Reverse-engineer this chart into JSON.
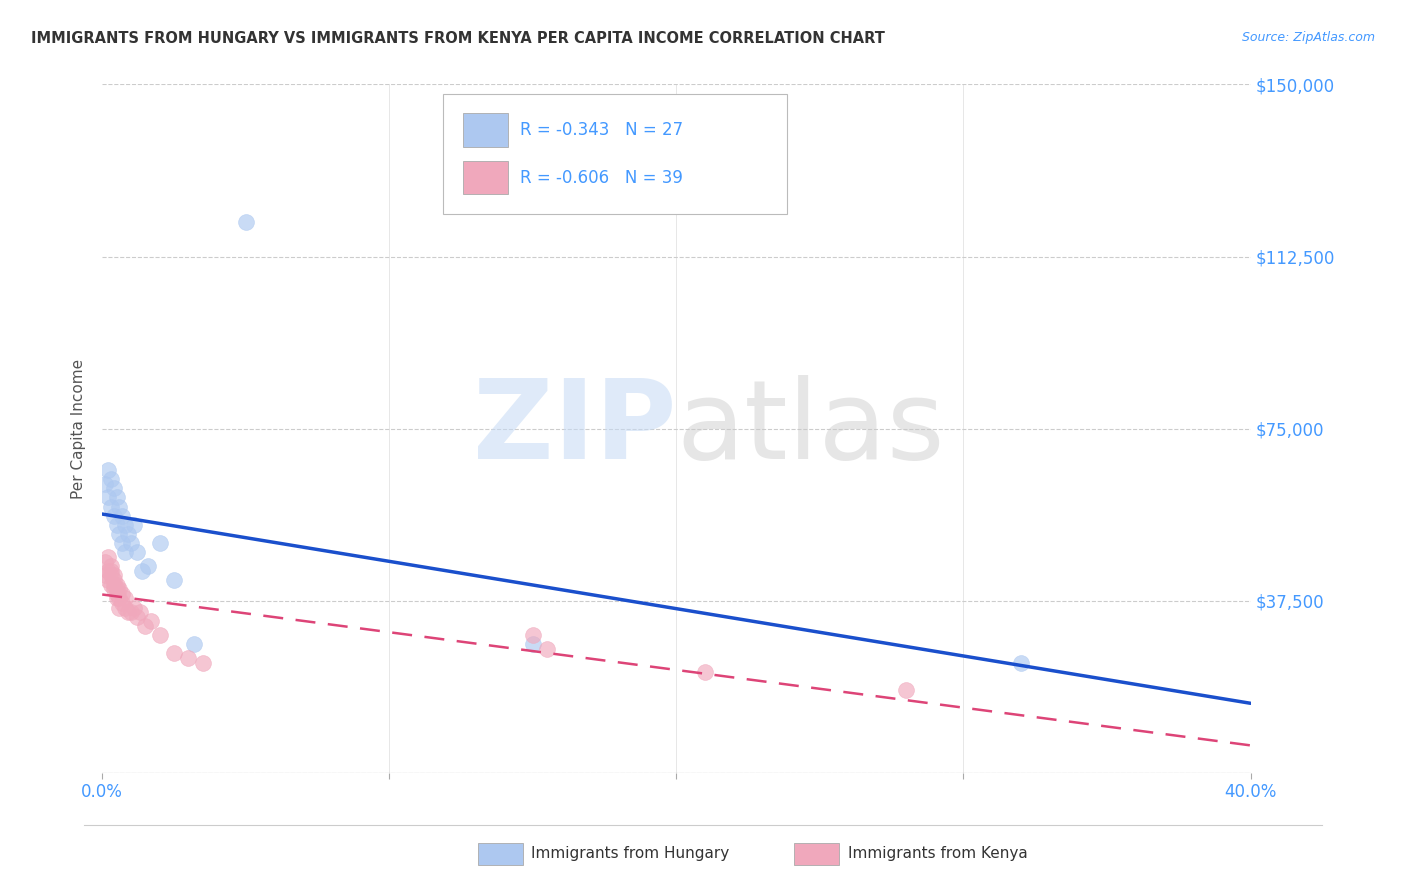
{
  "title": "IMMIGRANTS FROM HUNGARY VS IMMIGRANTS FROM KENYA PER CAPITA INCOME CORRELATION CHART",
  "source": "Source: ZipAtlas.com",
  "ylabel": "Per Capita Income",
  "xlim": [
    0,
    0.4
  ],
  "ylim": [
    0,
    150000
  ],
  "yticks": [
    0,
    37500,
    75000,
    112500,
    150000
  ],
  "right_ytick_labels": [
    "",
    "$37,500",
    "$75,000",
    "$112,500",
    "$150,000"
  ],
  "xticks": [
    0.0,
    0.1,
    0.2,
    0.3,
    0.4
  ],
  "xtick_labels": [
    "0.0%",
    "",
    "",
    "",
    "40.0%"
  ],
  "hungary_color": "#adc8f0",
  "kenya_color": "#f0a8bc",
  "hungary_line_color": "#1a4fcc",
  "kenya_line_color": "#dd4477",
  "hungary_R": -0.343,
  "hungary_N": 27,
  "kenya_R": -0.606,
  "kenya_N": 39,
  "background_color": "#ffffff",
  "grid_color": "#cccccc",
  "tick_color": "#4499ff",
  "hungary_x": [
    0.001,
    0.002,
    0.002,
    0.003,
    0.003,
    0.004,
    0.004,
    0.005,
    0.005,
    0.006,
    0.006,
    0.007,
    0.007,
    0.008,
    0.008,
    0.009,
    0.01,
    0.011,
    0.012,
    0.014,
    0.016,
    0.02,
    0.025,
    0.032,
    0.05,
    0.15,
    0.32
  ],
  "hungary_y": [
    63000,
    66000,
    60000,
    64000,
    58000,
    56000,
    62000,
    54000,
    60000,
    58000,
    52000,
    56000,
    50000,
    54000,
    48000,
    52000,
    50000,
    54000,
    48000,
    44000,
    45000,
    50000,
    42000,
    28000,
    120000,
    28000,
    24000
  ],
  "kenya_x": [
    0.001,
    0.001,
    0.002,
    0.002,
    0.002,
    0.003,
    0.003,
    0.003,
    0.003,
    0.004,
    0.004,
    0.004,
    0.004,
    0.005,
    0.005,
    0.005,
    0.005,
    0.006,
    0.006,
    0.006,
    0.007,
    0.007,
    0.008,
    0.008,
    0.009,
    0.01,
    0.011,
    0.012,
    0.013,
    0.015,
    0.017,
    0.02,
    0.025,
    0.03,
    0.035,
    0.15,
    0.155,
    0.21,
    0.28
  ],
  "kenya_y": [
    46000,
    43000,
    47000,
    44000,
    42000,
    45000,
    43000,
    41000,
    44000,
    42000,
    40000,
    43000,
    41000,
    40000,
    38000,
    41000,
    39000,
    38000,
    40000,
    36000,
    37000,
    39000,
    36000,
    38000,
    35000,
    35000,
    36000,
    34000,
    35000,
    32000,
    33000,
    30000,
    26000,
    25000,
    24000,
    30000,
    27000,
    22000,
    18000
  ],
  "hungary_line_x": [
    0.0,
    0.4
  ],
  "hungary_line_y": [
    62000,
    0
  ],
  "kenya_line_x": [
    0.0,
    0.4
  ],
  "kenya_line_y": [
    50000,
    20000
  ]
}
